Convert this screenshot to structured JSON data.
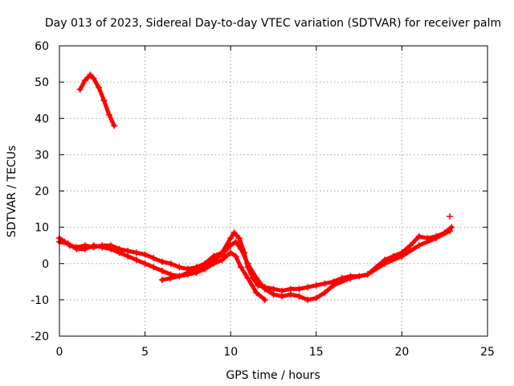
{
  "chart_data": {
    "type": "scatter",
    "title": "Day 013 of 2023, Sidereal Day-to-day VTEC variation (SDTVAR) for receiver palm",
    "xlabel": "GPS time / hours",
    "ylabel": "SDTVAR / TECUs",
    "xlim": [
      0,
      25
    ],
    "ylim": [
      -20,
      60
    ],
    "xticks": [
      0,
      5,
      10,
      15,
      20,
      25
    ],
    "yticks": [
      -20,
      -10,
      0,
      10,
      20,
      30,
      40,
      50,
      60
    ],
    "grid": true,
    "marker": "+",
    "series_color": "#ff0000",
    "series": [
      {
        "name": "upper arc",
        "x": [
          1.2,
          1.5,
          1.8,
          2.0,
          2.3,
          2.6,
          2.9,
          3.2
        ],
        "y": [
          48,
          50.5,
          52,
          51,
          48.5,
          45,
          41,
          38
        ]
      },
      {
        "name": "main trace",
        "x": [
          0.0,
          0.3,
          0.6,
          1.0,
          1.5,
          2.0,
          2.5,
          3.0,
          3.5,
          4.0,
          4.5,
          5.0,
          5.5,
          6.0,
          6.5,
          7.0,
          7.5,
          8.0,
          8.5,
          9.0,
          9.5,
          10.0,
          10.2,
          10.5,
          10.8,
          11.0,
          11.3,
          11.6,
          12.0,
          12.5,
          13.0,
          13.5,
          14.0,
          14.5,
          15.0,
          15.5,
          16.0,
          16.5,
          17.0,
          17.5,
          18.0,
          18.5,
          19.0,
          19.5,
          20.0,
          20.5,
          21.0,
          21.5,
          22.0,
          22.5,
          22.9
        ],
        "y": [
          7,
          6,
          5,
          4.5,
          5,
          4.5,
          5,
          5,
          4,
          3.5,
          3,
          2.5,
          1.5,
          0.5,
          0,
          -1,
          -1.5,
          -1,
          0,
          2,
          3,
          7,
          8.5,
          7,
          3,
          -1,
          -4,
          -6,
          -6.5,
          -7,
          -7.5,
          -7,
          -7,
          -6.5,
          -6,
          -5.5,
          -5,
          -4,
          -3.5,
          -3.5,
          -3,
          -1,
          1,
          2,
          3,
          5,
          7.5,
          7,
          7.5,
          8.5,
          10
        ]
      },
      {
        "name": "secondary trace",
        "x": [
          0.0,
          0.5,
          1.0,
          1.5,
          2.0,
          2.5,
          3.0,
          3.5,
          4.0,
          4.5,
          5.0,
          5.5,
          6.0,
          6.5,
          7.0,
          7.5,
          8.0,
          8.5,
          9.0,
          9.5,
          10.0,
          10.3,
          10.6,
          11.0,
          11.5,
          12.0,
          12.5,
          13.0,
          13.5,
          14.0,
          14.5,
          15.0,
          15.5,
          16.0,
          17.0,
          18.0,
          19.0,
          20.0,
          21.0,
          22.0,
          22.8
        ],
        "y": [
          6,
          5.5,
          4,
          4,
          5,
          4.5,
          4,
          3,
          2,
          1,
          0,
          -1,
          -2,
          -3,
          -3.5,
          -2.5,
          -2,
          -1,
          1,
          2.5,
          5,
          6,
          4,
          0,
          -4,
          -7,
          -8.5,
          -9,
          -8.5,
          -9,
          -10,
          -9.5,
          -8,
          -6,
          -4,
          -3,
          0,
          2,
          5,
          7,
          9
        ]
      },
      {
        "name": "low branch",
        "x": [
          6.0,
          6.5,
          7.0,
          7.5,
          8.0,
          8.5,
          9.0,
          9.5,
          10.0,
          10.3,
          10.6,
          11.0,
          11.5,
          12.0
        ],
        "y": [
          -4.5,
          -4,
          -3.5,
          -3,
          -2.5,
          -1.5,
          0,
          1,
          3,
          2,
          -1,
          -4,
          -8,
          -10
        ]
      },
      {
        "name": "outlier",
        "x": [
          22.8
        ],
        "y": [
          13
        ]
      }
    ]
  }
}
